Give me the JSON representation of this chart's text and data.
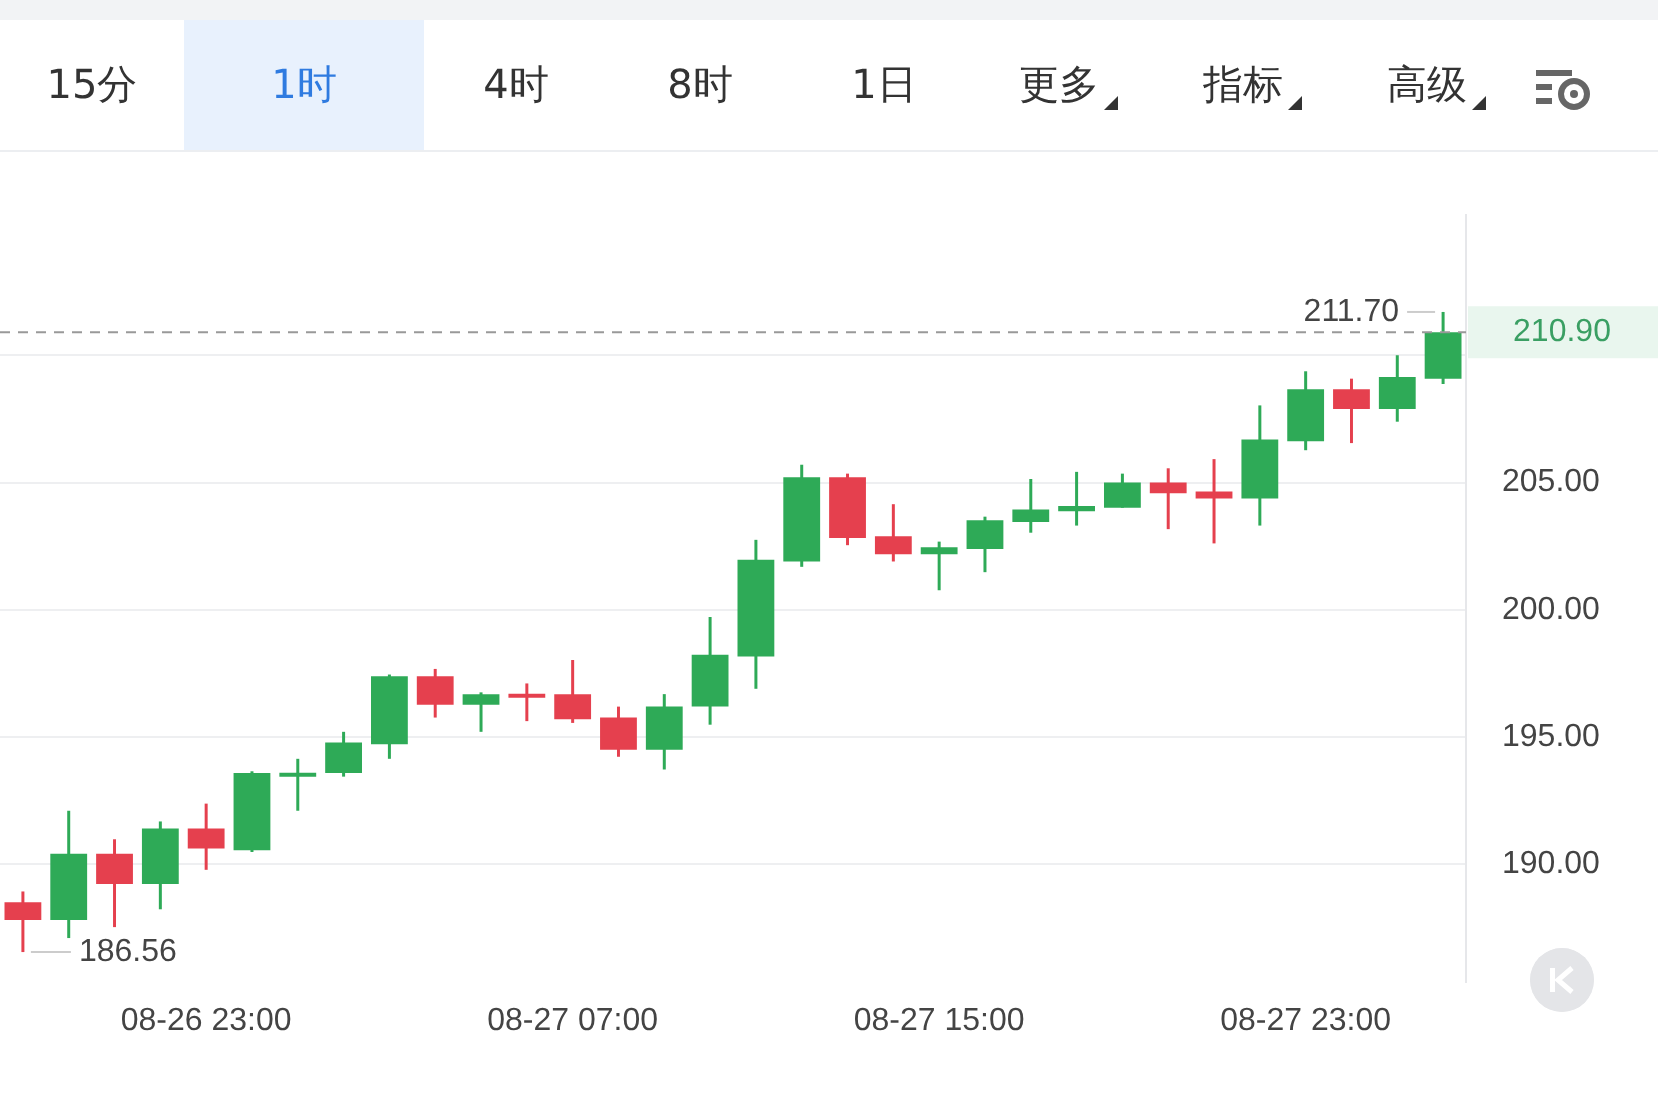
{
  "chart_data": {
    "type": "candlestick",
    "categories": [
      null,
      null,
      null,
      null,
      "08-26 23:00",
      null,
      null,
      null,
      null,
      null,
      null,
      null,
      "08-27 07:00",
      null,
      null,
      null,
      null,
      null,
      null,
      null,
      "08-27 15:00",
      null,
      null,
      null,
      null,
      null,
      null,
      null,
      "08-27 23:00",
      null,
      null,
      null
    ],
    "ohlc": [
      [
        188.52,
        188.94,
        186.56,
        187.82
      ],
      [
        187.82,
        192.11,
        187.11,
        190.42
      ],
      [
        190.42,
        190.99,
        187.54,
        189.23
      ],
      [
        189.23,
        191.69,
        188.24,
        191.41
      ],
      [
        191.41,
        192.39,
        189.79,
        190.63
      ],
      [
        190.56,
        193.66,
        190.49,
        193.59
      ],
      [
        193.45,
        194.15,
        192.11,
        193.59
      ],
      [
        193.59,
        195.21,
        193.45,
        194.79
      ],
      [
        194.72,
        197.46,
        194.15,
        197.39
      ],
      [
        197.39,
        197.68,
        195.77,
        196.27
      ],
      [
        196.27,
        196.76,
        195.21,
        196.69
      ],
      [
        196.69,
        197.11,
        195.63,
        196.55
      ],
      [
        196.69,
        198.03,
        195.56,
        195.7
      ],
      [
        195.77,
        196.2,
        194.23,
        194.51
      ],
      [
        194.51,
        196.69,
        193.73,
        196.2
      ],
      [
        196.2,
        199.72,
        195.49,
        198.24
      ],
      [
        198.17,
        202.75,
        196.9,
        201.97
      ],
      [
        201.9,
        205.7,
        201.69,
        205.21
      ],
      [
        205.21,
        205.35,
        202.54,
        202.82
      ],
      [
        202.89,
        204.15,
        201.9,
        202.18
      ],
      [
        202.18,
        202.68,
        200.77,
        202.46
      ],
      [
        202.39,
        203.66,
        201.48,
        203.52
      ],
      [
        203.45,
        205.14,
        203.03,
        203.94
      ],
      [
        203.87,
        205.42,
        203.31,
        204.08
      ],
      [
        204.01,
        205.35,
        204.01,
        205.0
      ],
      [
        205.0,
        205.56,
        203.17,
        204.58
      ],
      [
        204.65,
        205.92,
        202.61,
        204.37
      ],
      [
        204.37,
        208.03,
        203.31,
        206.69
      ],
      [
        206.62,
        209.37,
        206.27,
        208.66
      ],
      [
        208.66,
        209.08,
        206.55,
        207.89
      ],
      [
        207.89,
        210.0,
        207.39,
        209.15
      ],
      [
        209.08,
        211.7,
        208.87,
        210.9
      ]
    ],
    "colors": [
      "#e5404e",
      "#2eaa57",
      "#e5404e",
      "#2eaa57",
      "#e5404e",
      "#2eaa57",
      "#2eaa57",
      "#2eaa57",
      "#2eaa57",
      "#e5404e",
      "#2eaa57",
      "#e5404e",
      "#e5404e",
      "#e5404e",
      "#2eaa57",
      "#2eaa57",
      "#2eaa57",
      "#2eaa57",
      "#e5404e",
      "#e5404e",
      "#2eaa57",
      "#2eaa57",
      "#2eaa57",
      "#2eaa57",
      "#2eaa57",
      "#e5404e",
      "#e5404e",
      "#2eaa57",
      "#2eaa57",
      "#e5404e",
      "#2eaa57",
      "#2eaa57"
    ],
    "ylim": [
      185.4,
      215.5
    ],
    "yticks": [
      {
        "value": 190,
        "label": "190.00"
      },
      {
        "value": 195,
        "label": "195.00"
      },
      {
        "value": 200,
        "label": "200.00"
      },
      {
        "value": 205,
        "label": "205.00"
      },
      {
        "value": 210,
        "label": null
      }
    ],
    "grid": "y",
    "legend": false,
    "ref_lines": [
      {
        "axis": "y",
        "value": 210.9,
        "label": "210.90",
        "color": "#999999",
        "line_style": "dashed"
      }
    ],
    "annotations": [
      "15分",
      "1时",
      "4时",
      "8时",
      "1日",
      "更多",
      "指标",
      "高级",
      "211.70",
      "186.56"
    ]
  }
}
